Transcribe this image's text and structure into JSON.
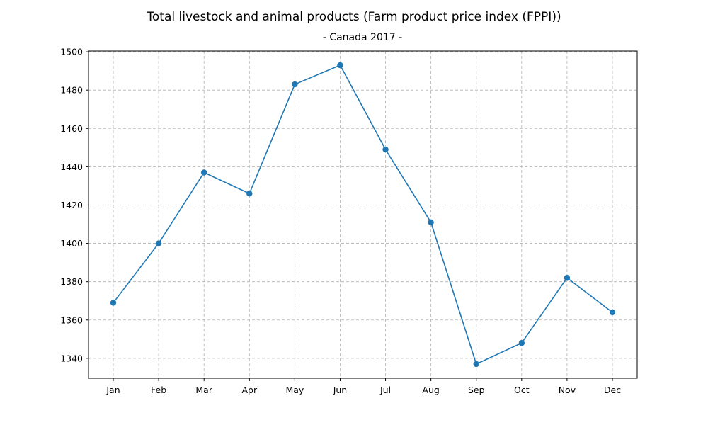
{
  "chart_data": {
    "type": "line",
    "title": "Total livestock and animal products (Farm product price index (FPPI))",
    "subtitle": "- Canada 2017 -",
    "xlabel": "",
    "ylabel": "",
    "categories": [
      "Jan",
      "Feb",
      "Mar",
      "Apr",
      "May",
      "Jun",
      "Jul",
      "Aug",
      "Sep",
      "Oct",
      "Nov",
      "Dec"
    ],
    "series": [
      {
        "values": [
          1369,
          1400,
          1437,
          1426,
          1483,
          1493,
          1449,
          1411,
          1337,
          1348,
          1382,
          1364
        ],
        "color": "#1f77b4",
        "marker": "circle"
      }
    ],
    "ylim": [
      1329.6,
      1500.4
    ],
    "yticks": [
      1340,
      1360,
      1380,
      1400,
      1420,
      1440,
      1460,
      1480,
      1500
    ],
    "grid": true,
    "grid_style": "dashed",
    "legend": "none"
  }
}
